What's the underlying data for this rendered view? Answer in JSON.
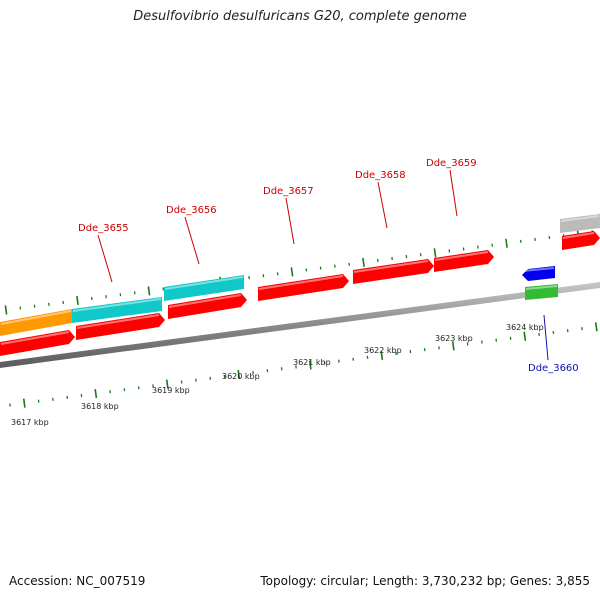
{
  "title": "Desulfovibrio desulfuricans G20, complete genome",
  "footer": {
    "accession": "Accession: NC_007519",
    "topology": "Topology: circular; Length: 3,730,232 bp; Genes: 3,855"
  },
  "colors": {
    "backbone": "#8c8c8c",
    "tick": "#1a7a1a",
    "forward_gene": "#ff0000",
    "reverse_gene_label": "#1111aa",
    "cds_cyan": "#10c8c8",
    "cds_orange": "#ff9900",
    "gray_feature": "#bbbbbb",
    "blue_feature": "#0000ee",
    "green_feature": "#33bb33"
  },
  "scale": {
    "unit": "kbp",
    "labels": [
      "3617 kbp",
      "3618 kbp",
      "3619 kbp",
      "3620 kbp",
      "3621 kbp",
      "3622 kbp",
      "3623 kbp",
      "3624 kbp"
    ]
  },
  "genes": [
    {
      "name": "Dde_3655",
      "strand": "forward",
      "color": "#cc0000"
    },
    {
      "name": "Dde_3656",
      "strand": "forward",
      "color": "#cc0000"
    },
    {
      "name": "Dde_3657",
      "strand": "forward",
      "color": "#cc0000"
    },
    {
      "name": "Dde_3658",
      "strand": "forward",
      "color": "#cc0000"
    },
    {
      "name": "Dde_3659",
      "strand": "forward",
      "color": "#cc0000"
    },
    {
      "name": "Dde_3660",
      "strand": "reverse",
      "color": "#1111aa"
    }
  ]
}
